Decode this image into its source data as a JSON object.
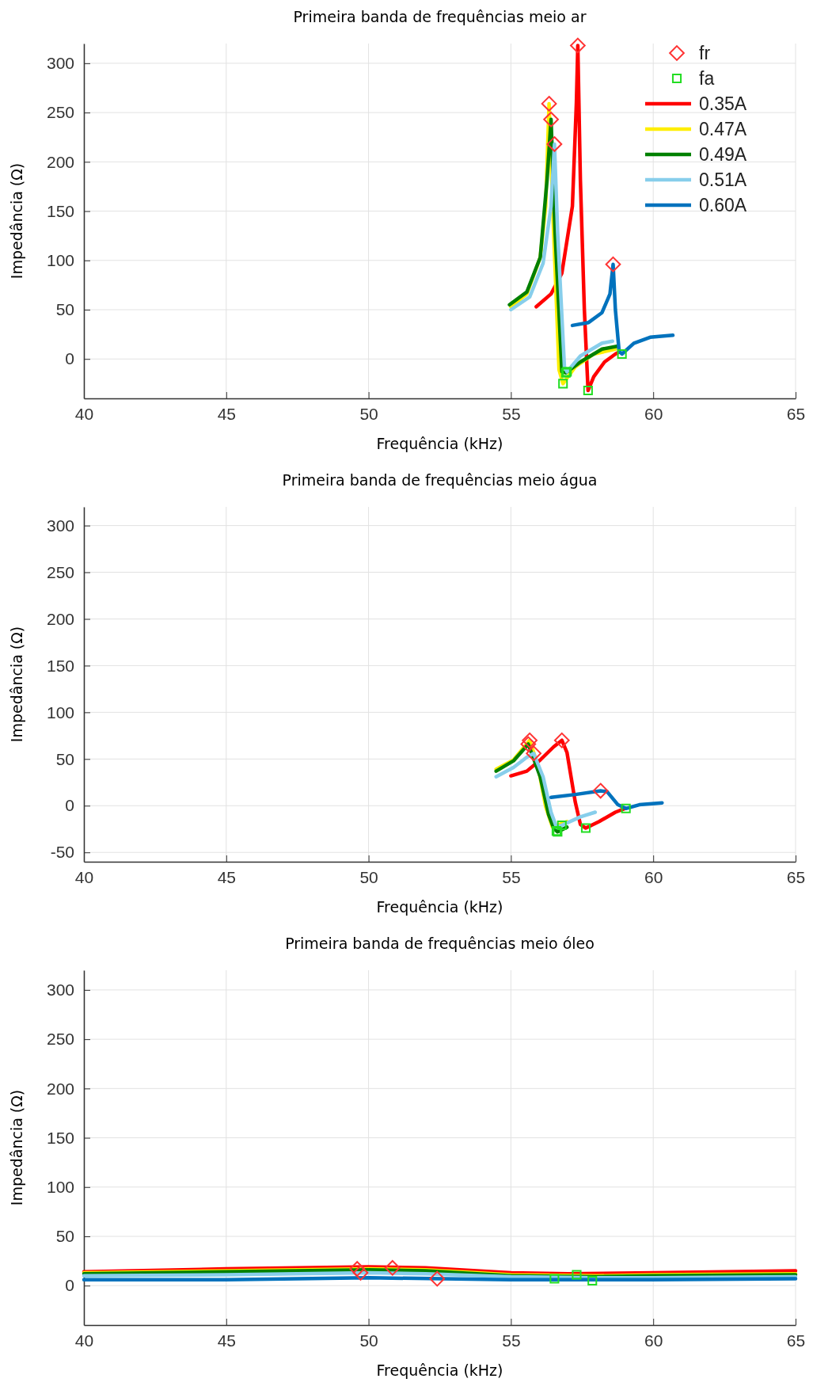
{
  "chart_data": [
    {
      "type": "line",
      "title": "Primeira banda de frequências meio ar",
      "xlabel": "Frequência (kHz)",
      "ylabel": "Impedância (Ω)",
      "xlim": [
        40,
        65
      ],
      "xticks": [
        40,
        45,
        50,
        55,
        60,
        65
      ],
      "ylim": [
        -40,
        320
      ],
      "yticks": [
        0,
        50,
        100,
        150,
        200,
        250,
        300
      ],
      "grid": true,
      "legend": "top right",
      "series": [
        {
          "name": "fr",
          "type": "scatter",
          "marker": "diamond",
          "color": "#ff3333",
          "x": [
            57.35,
            56.34,
            56.41,
            56.53,
            58.59
          ],
          "values": [
            318,
            259,
            243,
            218,
            96
          ]
        },
        {
          "name": "fa",
          "type": "scatter",
          "marker": "square",
          "color": "#22dd22",
          "x": [
            56.83,
            56.93,
            56.97,
            57.71,
            58.9
          ],
          "values": [
            -25,
            -14,
            -13,
            -32,
            5
          ]
        },
        {
          "name": "0.35A",
          "color": "#ff0000",
          "x": [
            55.89,
            56.41,
            56.79,
            57.16,
            57.3,
            57.35,
            57.44,
            57.58,
            57.71,
            57.91,
            58.29,
            58.67,
            58.8
          ],
          "values": [
            53,
            66,
            87,
            155,
            260,
            318,
            182,
            50,
            -32,
            -18,
            -3,
            5,
            7
          ]
        },
        {
          "name": "0.47A",
          "color": "#ffee00",
          "x": [
            55,
            55.56,
            56.03,
            56.22,
            56.34,
            56.5,
            56.69,
            56.83,
            57.26,
            57.91,
            58.67
          ],
          "values": [
            53,
            66,
            103,
            155,
            259,
            129,
            -11,
            -25,
            -8,
            5,
            10
          ]
        },
        {
          "name": "0.49A",
          "color": "#008000",
          "x": [
            54.95,
            55.56,
            56.03,
            56.27,
            56.41,
            56.55,
            56.79,
            56.93,
            57.44,
            58.2,
            58.76
          ],
          "values": [
            55,
            68,
            103,
            182,
            243,
            129,
            -13,
            -14,
            -3,
            10,
            13
          ]
        },
        {
          "name": "0.51A",
          "color": "#87ceeb",
          "x": [
            55,
            55.66,
            56.13,
            56.41,
            56.53,
            56.64,
            56.88,
            56.97,
            57.44,
            58.2,
            58.57
          ],
          "values": [
            50,
            63,
            97,
            155,
            218,
            129,
            -8,
            -13,
            3,
            16,
            18
          ]
        },
        {
          "name": "0.60A",
          "color": "#0072bd",
          "x": [
            57.16,
            57.73,
            58.2,
            58.48,
            58.59,
            58.67,
            58.8,
            58.9,
            59.32,
            59.89,
            60.69
          ],
          "values": [
            34,
            37,
            47,
            66,
            96,
            50,
            8,
            5,
            16,
            22,
            24
          ]
        }
      ]
    },
    {
      "type": "line",
      "title": "Primeira banda de frequências meio água",
      "xlabel": "Frequência (kHz)",
      "ylabel": "Impedância (Ω)",
      "xlim": [
        40,
        65
      ],
      "xticks": [
        40,
        45,
        50,
        55,
        60,
        65
      ],
      "ylim": [
        -60,
        320
      ],
      "yticks": [
        -50,
        0,
        50,
        100,
        150,
        200,
        250,
        300
      ],
      "grid": true,
      "series": [
        {
          "type": "scatter",
          "marker": "diamond",
          "color": "#ff3333",
          "x": [
            56.79,
            55.66,
            55.61,
            55.8,
            58.15
          ],
          "values": [
            70,
            70,
            66,
            56,
            16
          ]
        },
        {
          "type": "scatter",
          "marker": "square",
          "color": "#22dd22",
          "x": [
            57.63,
            56.6,
            56.64,
            56.79,
            59.04
          ],
          "values": [
            -24,
            -27,
            -28,
            -21,
            -3
          ]
        },
        {
          "color": "#ff0000",
          "x": [
            55,
            55.56,
            56.03,
            56.5,
            56.79,
            56.97,
            57.26,
            57.44,
            57.63,
            58.1,
            58.67,
            59
          ],
          "values": [
            32,
            37,
            49,
            63,
            70,
            57,
            4,
            -20,
            -24,
            -17,
            -7,
            -3
          ]
        },
        {
          "color": "#ffee00",
          "x": [
            54.48,
            55.09,
            55.66,
            55.94,
            56.22,
            56.46,
            56.6,
            56.97
          ],
          "values": [
            39,
            49,
            70,
            44,
            -1,
            -23,
            null,
            -17
          ]
        },
        {
          "color": "#008000",
          "x": [
            54.48,
            55.09,
            55.61,
            56.03,
            56.32,
            56.5,
            56.64,
            56.97
          ],
          "values": [
            37,
            48,
            66,
            31,
            -9,
            -24,
            -28,
            -23
          ]
        },
        {
          "color": "#87ceeb",
          "x": [
            54.48,
            55.09,
            55.56,
            55.8,
            56.13,
            56.41,
            56.6,
            56.79,
            57.44,
            57.96
          ],
          "values": [
            31,
            41,
            52,
            56,
            31,
            -7,
            -23,
            -21,
            -12,
            -7
          ]
        },
        {
          "color": "#0072bd",
          "x": [
            56.41,
            57.26,
            58.15,
            58.38,
            58.76,
            59.04,
            59.51,
            60.31
          ],
          "values": [
            9,
            12,
            16,
            15,
            1,
            -3,
            1,
            3
          ]
        }
      ]
    },
    {
      "type": "line",
      "title": "Primeira banda de frequências meio óleo",
      "xlabel": "Frequência (kHz)",
      "ylabel": "Impedância (Ω)",
      "xlim": [
        40,
        65
      ],
      "xticks": [
        40,
        45,
        50,
        55,
        60,
        65
      ],
      "ylim": [
        -40,
        320
      ],
      "yticks": [
        0,
        50,
        100,
        150,
        200,
        250,
        300
      ],
      "grid": true,
      "series": [
        {
          "type": "scatter",
          "marker": "diamond",
          "color": "#ff3333",
          "x": [
            49.6,
            49.72,
            50.84,
            52.41
          ],
          "values": [
            17,
            13,
            18,
            7
          ]
        },
        {
          "type": "scatter",
          "marker": "square",
          "color": "#22dd22",
          "x": [
            56.53,
            57.31,
            57.86
          ],
          "values": [
            7,
            11,
            5
          ]
        },
        {
          "color": "#ff0000",
          "x": [
            40,
            45,
            50,
            52,
            55,
            57,
            60,
            65
          ],
          "values": [
            14,
            17,
            19,
            18,
            13,
            12,
            13,
            15
          ]
        },
        {
          "color": "#ffee00",
          "x": [
            40,
            45,
            50,
            52,
            55,
            58,
            60,
            65
          ],
          "values": [
            13,
            15,
            17,
            16,
            11,
            10,
            11,
            12
          ]
        },
        {
          "color": "#008000",
          "x": [
            40,
            45,
            50,
            52,
            55,
            58,
            60,
            65
          ],
          "values": [
            12,
            14,
            16,
            15,
            10,
            9,
            10,
            11
          ]
        },
        {
          "color": "#87ceeb",
          "x": [
            40,
            45,
            50,
            52,
            55,
            58,
            60,
            65
          ],
          "values": [
            10,
            11,
            13,
            12,
            9,
            8,
            8,
            9
          ]
        },
        {
          "color": "#0072bd",
          "x": [
            40,
            45,
            50,
            55,
            60,
            65
          ],
          "values": [
            6,
            6,
            8,
            6,
            6,
            7
          ]
        }
      ]
    }
  ]
}
